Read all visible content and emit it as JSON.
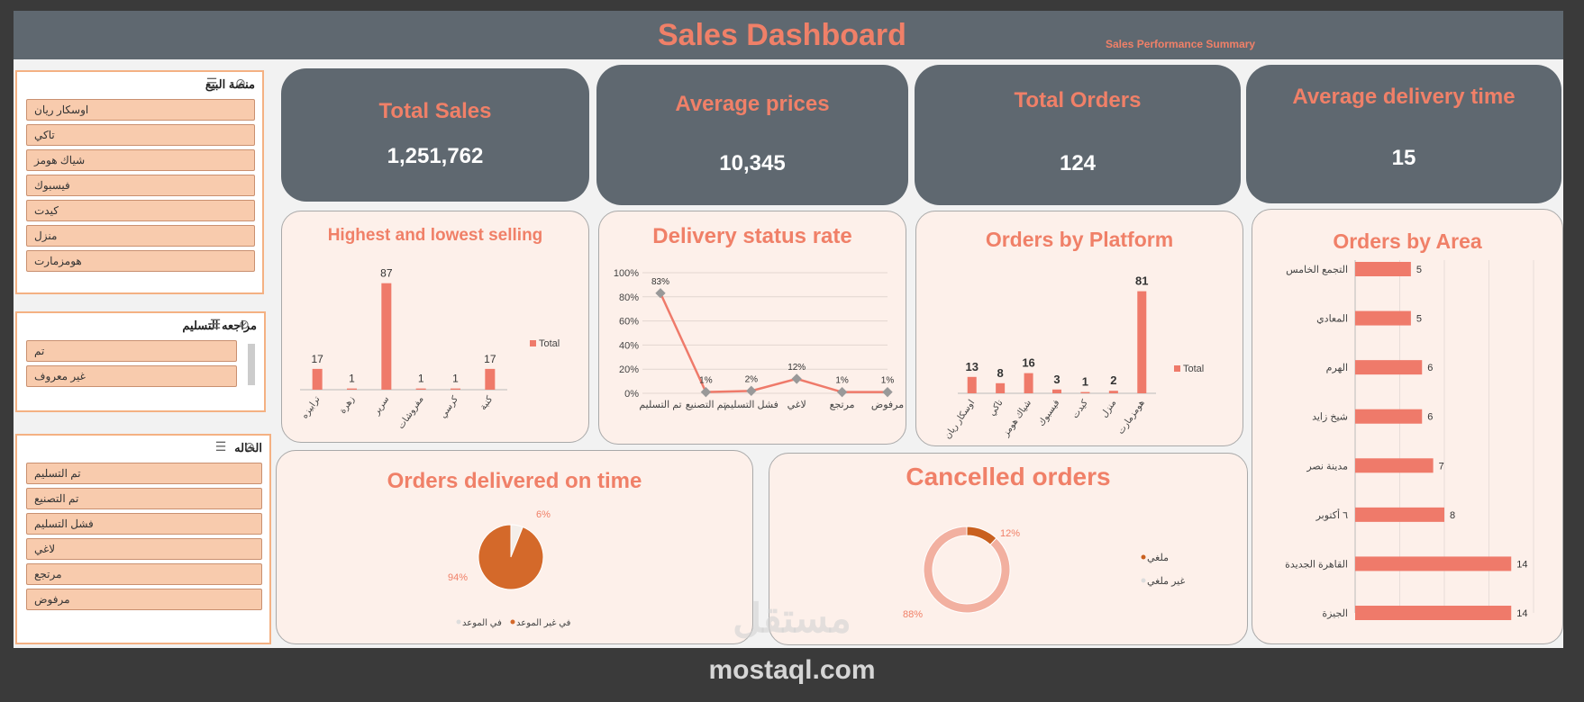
{
  "header": {
    "title": "Sales Dashboard",
    "subtitle": "Sales Performance Summary"
  },
  "slicers": [
    {
      "title": "منصة البيع",
      "items": [
        "اوسكار ريان",
        "تاكي",
        "شياك هومز",
        "فيسبوك",
        "كيدت",
        "منزل",
        "هومزمارت"
      ]
    },
    {
      "title": "مراجعه التسليم",
      "items": [
        "تم",
        "غير معروف"
      ]
    },
    {
      "title": "الحاله",
      "items": [
        "تم التسليم",
        "تم التصنيع",
        "فشل التسليم",
        "لاغي",
        "مرتجع",
        "مرفوض"
      ]
    }
  ],
  "kpis": {
    "total_sales": {
      "label": "Total Sales",
      "value": "1,251,762"
    },
    "avg_prices": {
      "label": "Average prices",
      "value": "10,345"
    },
    "total_orders": {
      "label": "Total Orders",
      "value": "124"
    },
    "avg_delivery": {
      "label": "Average delivery time",
      "value": "15"
    }
  },
  "panel_titles": {
    "highest_lowest": "Highest and lowest selling",
    "delivery_status": "Delivery status rate",
    "orders_platform": "Orders by Platform",
    "orders_area": "Orders by Area",
    "on_time": "Orders delivered on time",
    "cancelled": "Cancelled orders"
  },
  "watermark": {
    "logo": "مستقل",
    "domain": "mostaql.com"
  },
  "colors": {
    "bar": "#ef7a6a",
    "line": "#ef7a6a",
    "pie_main": "#d4692a",
    "donut_main": "#f2b0a0",
    "donut_small": "#c9601f",
    "kpi_bg": "#5f6870",
    "accent": "#f08068"
  },
  "chart_data": [
    {
      "type": "bar",
      "title": "Highest and lowest selling",
      "categories": [
        "ترابيزه",
        "زهرة",
        "سرير",
        "مفروشات",
        "كرسي",
        "كنبة"
      ],
      "series": [
        {
          "name": "Total",
          "values": [
            17,
            1,
            87,
            1,
            1,
            17
          ]
        }
      ],
      "ylim": [
        0,
        100
      ],
      "legend": "right"
    },
    {
      "type": "line",
      "title": "Delivery status rate",
      "categories": [
        "تم التسليم",
        "تم التصنيع",
        "فشل التسليم",
        "لاغي",
        "مرتجع",
        "مرفوض"
      ],
      "values": [
        83,
        1,
        2,
        12,
        1,
        1
      ],
      "value_labels": [
        "83%",
        "1%",
        "2%",
        "12%",
        "1%",
        "1%"
      ],
      "yticks": [
        "100%",
        "80%",
        "60%",
        "40%",
        "20%",
        "0%"
      ],
      "ylim": [
        0,
        100
      ]
    },
    {
      "type": "bar",
      "title": "Orders by Platform",
      "categories": [
        "اوسكار ريان",
        "تاكي",
        "شياك هومز",
        "فيسبوك",
        "كيدت",
        "منزل",
        "هومزمارت"
      ],
      "series": [
        {
          "name": "Total",
          "values": [
            13,
            8,
            16,
            3,
            1,
            2,
            81
          ]
        }
      ],
      "ylim": [
        0,
        100
      ],
      "legend": "right"
    },
    {
      "type": "bar",
      "orientation": "horizontal",
      "title": "Orders by Area",
      "categories": [
        "التجمع الخامس",
        "المعادي",
        "الهرم",
        "شيخ زايد",
        "مدينة نصر",
        "٦ أكتوبر",
        "القاهرة الجديدة",
        "الجيزة"
      ],
      "values": [
        5,
        5,
        6,
        6,
        7,
        8,
        14,
        14
      ],
      "xlim": [
        0,
        16
      ]
    },
    {
      "type": "pie",
      "title": "Orders delivered on time",
      "labels": [
        "في الموعد",
        "في غير الموعد"
      ],
      "values": [
        6,
        94
      ],
      "value_labels": [
        "6%",
        "94%"
      ],
      "legend": "bottom"
    },
    {
      "type": "pie",
      "subtype": "donut",
      "title": "Cancelled orders",
      "labels": [
        "ملغي",
        "غير ملغي"
      ],
      "values": [
        12,
        88
      ],
      "value_labels": [
        "12%",
        "88%"
      ],
      "legend": "right"
    }
  ]
}
